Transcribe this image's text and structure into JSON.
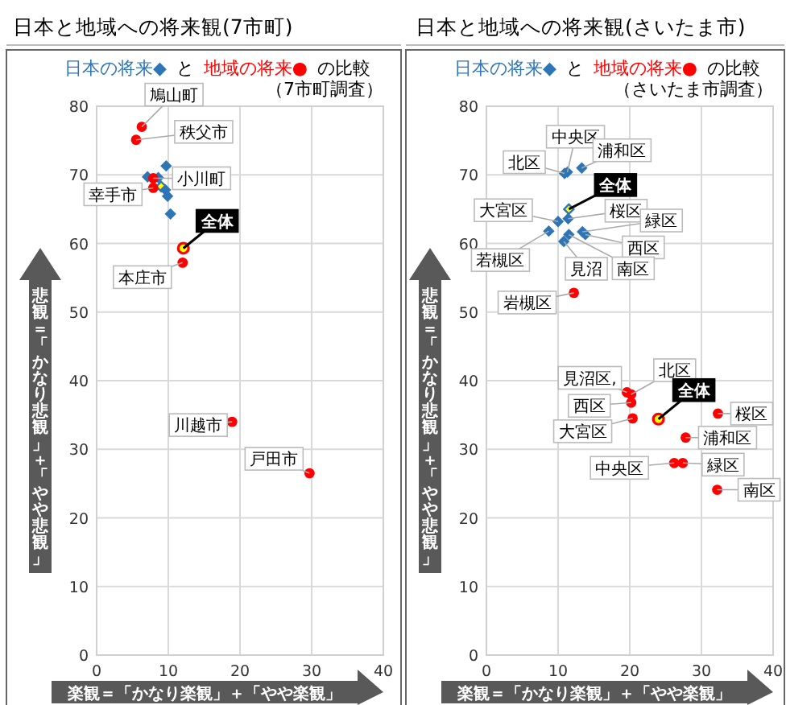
{
  "chart_data": [
    {
      "type": "scatter",
      "title": "日本と地域への将来観(7市町)",
      "subtitle": "（7市町調査）",
      "xlabel": "楽観＝「かなり楽観」＋「やや楽観」",
      "ylabel": "悲観＝「かなり悲観」＋「やや悲観」",
      "xlim": [
        0,
        40
      ],
      "ylim": [
        0,
        80
      ],
      "xticks": [
        0,
        10,
        20,
        30,
        40
      ],
      "yticks": [
        0,
        10,
        20,
        30,
        40,
        50,
        60,
        70,
        80
      ],
      "grid": true,
      "series": [
        {
          "name": "日本の将来◆",
          "color": "#2e75b6",
          "marker": "diamond",
          "x": [
            9.7,
            7.1,
            8.6,
            9.0,
            9.6,
            9.9,
            10.3
          ],
          "values": [
            71.3,
            69.7,
            69.6,
            68.3,
            67.8,
            66.9,
            64.3
          ],
          "colors": [
            "#2e75b6",
            "#2e75b6",
            "#2e75b6",
            "#ffff00",
            "#2e75b6",
            "#2e75b6",
            "#2e75b6"
          ]
        },
        {
          "name": "地域の将来●",
          "color": "#ff0000",
          "marker": "circle",
          "x": [
            6.3,
            5.5,
            7.9,
            7.9,
            12.1,
            12.0,
            18.9,
            29.7
          ],
          "values": [
            77.0,
            75.1,
            69.5,
            68.1,
            59.3,
            57.2,
            34.0,
            26.5
          ],
          "colors": [
            "#ff0000",
            "#ff0000",
            "#ff0000",
            "#ff0000",
            "#ffff00",
            "#ff0000",
            "#ff0000",
            "#ff0000"
          ]
        }
      ],
      "annotations": [
        "と",
        "の比較",
        {
          "text": "全体",
          "x": 12.1,
          "y": 59.3
        },
        {
          "text": "鳩山町",
          "x": 6.3,
          "y": 77.0
        },
        {
          "text": "秩父市",
          "x": 5.5,
          "y": 75.1
        },
        {
          "text": "小川町",
          "x": 7.9,
          "y": 69.5
        },
        {
          "text": "幸手市",
          "x": 7.9,
          "y": 68.1
        },
        {
          "text": "本庄市",
          "x": 12.0,
          "y": 57.2
        },
        {
          "text": "川越市",
          "x": 18.9,
          "y": 34.0
        },
        {
          "text": "戸田市",
          "x": 29.7,
          "y": 26.5
        }
      ]
    },
    {
      "type": "scatter",
      "title": "日本と地域への将来観(さいたま市)",
      "subtitle": "（さいたま市調査）",
      "xlabel": "楽観＝「かなり楽観」＋「やや楽観」",
      "ylabel": "悲観＝「かなり悲観」＋「やや悲観」",
      "xlim": [
        0,
        40
      ],
      "ylim": [
        0,
        80
      ],
      "xticks": [
        0,
        10,
        20,
        30,
        40
      ],
      "yticks": [
        0,
        10,
        20,
        30,
        40,
        50,
        60,
        70,
        80
      ],
      "grid": true,
      "series": [
        {
          "name": "日本の将来◆",
          "color": "#2e75b6",
          "marker": "diamond",
          "x": [
            11.3,
            13.3,
            10.9,
            11.5,
            10.0,
            11.4,
            13.4,
            13.8,
            11.5,
            10.8,
            8.7
          ],
          "values": [
            70.4,
            71.0,
            70.2,
            65.0,
            63.2,
            63.6,
            61.7,
            61.3,
            61.3,
            60.3,
            61.8
          ],
          "colors": [
            "#2e75b6",
            "#2e75b6",
            "#2e75b6",
            "#ffff00",
            "#2e75b6",
            "#2e75b6",
            "#2e75b6",
            "#2e75b6",
            "#2e75b6",
            "#2e75b6",
            "#2e75b6"
          ]
        },
        {
          "name": "地域の将来●",
          "color": "#ff0000",
          "marker": "circle",
          "x": [
            12.2,
            19.6,
            20.2,
            20.2,
            20.4,
            24.0,
            32.3,
            27.8,
            26.2,
            27.4,
            32.2
          ],
          "values": [
            52.8,
            38.3,
            38.0,
            36.8,
            34.5,
            34.4,
            35.2,
            31.7,
            28.0,
            28.0,
            24.1
          ],
          "colors": [
            "#ff0000",
            "#ff0000",
            "#ff0000",
            "#ff0000",
            "#ff0000",
            "#ffff00",
            "#ff0000",
            "#ff0000",
            "#ff0000",
            "#ff0000",
            "#ff0000"
          ]
        }
      ],
      "annotations": [
        "と",
        "の比較",
        {
          "text": "中央区",
          "x": 11.3,
          "y": 70.4
        },
        {
          "text": "浦和区",
          "x": 13.3,
          "y": 71.0
        },
        {
          "text": "北区",
          "x": 10.9,
          "y": 70.2
        },
        {
          "text": "全体",
          "x": 11.5,
          "y": 65.0
        },
        {
          "text": "大宮区",
          "x": 10.0,
          "y": 63.2
        },
        {
          "text": "桜区",
          "x": 11.4,
          "y": 63.6
        },
        {
          "text": "緑区",
          "x": 13.4,
          "y": 61.7
        },
        {
          "text": "西区",
          "x": 13.8,
          "y": 61.3
        },
        {
          "text": "南区",
          "x": 11.5,
          "y": 61.3
        },
        {
          "text": "見沼",
          "x": 10.8,
          "y": 60.3
        },
        {
          "text": "若槻区",
          "x": 8.7,
          "y": 61.8
        },
        {
          "text": "岩槻区",
          "x": 12.2,
          "y": 52.8
        },
        {
          "text": "見沼区,",
          "x": 19.6,
          "y": 38.3
        },
        {
          "text": "北区",
          "x": 20.2,
          "y": 38.0
        },
        {
          "text": "西区",
          "x": 20.2,
          "y": 36.8
        },
        {
          "text": "大宮区",
          "x": 20.4,
          "y": 34.5
        },
        {
          "text": "全体",
          "x": 24.0,
          "y": 34.4
        },
        {
          "text": "桜区",
          "x": 32.3,
          "y": 35.2
        },
        {
          "text": "浦和区",
          "x": 27.8,
          "y": 31.7
        },
        {
          "text": "中央区",
          "x": 26.2,
          "y": 28.0
        },
        {
          "text": "緑区",
          "x": 27.4,
          "y": 28.0
        },
        {
          "text": "南区",
          "x": 32.2,
          "y": 24.1
        }
      ]
    }
  ]
}
